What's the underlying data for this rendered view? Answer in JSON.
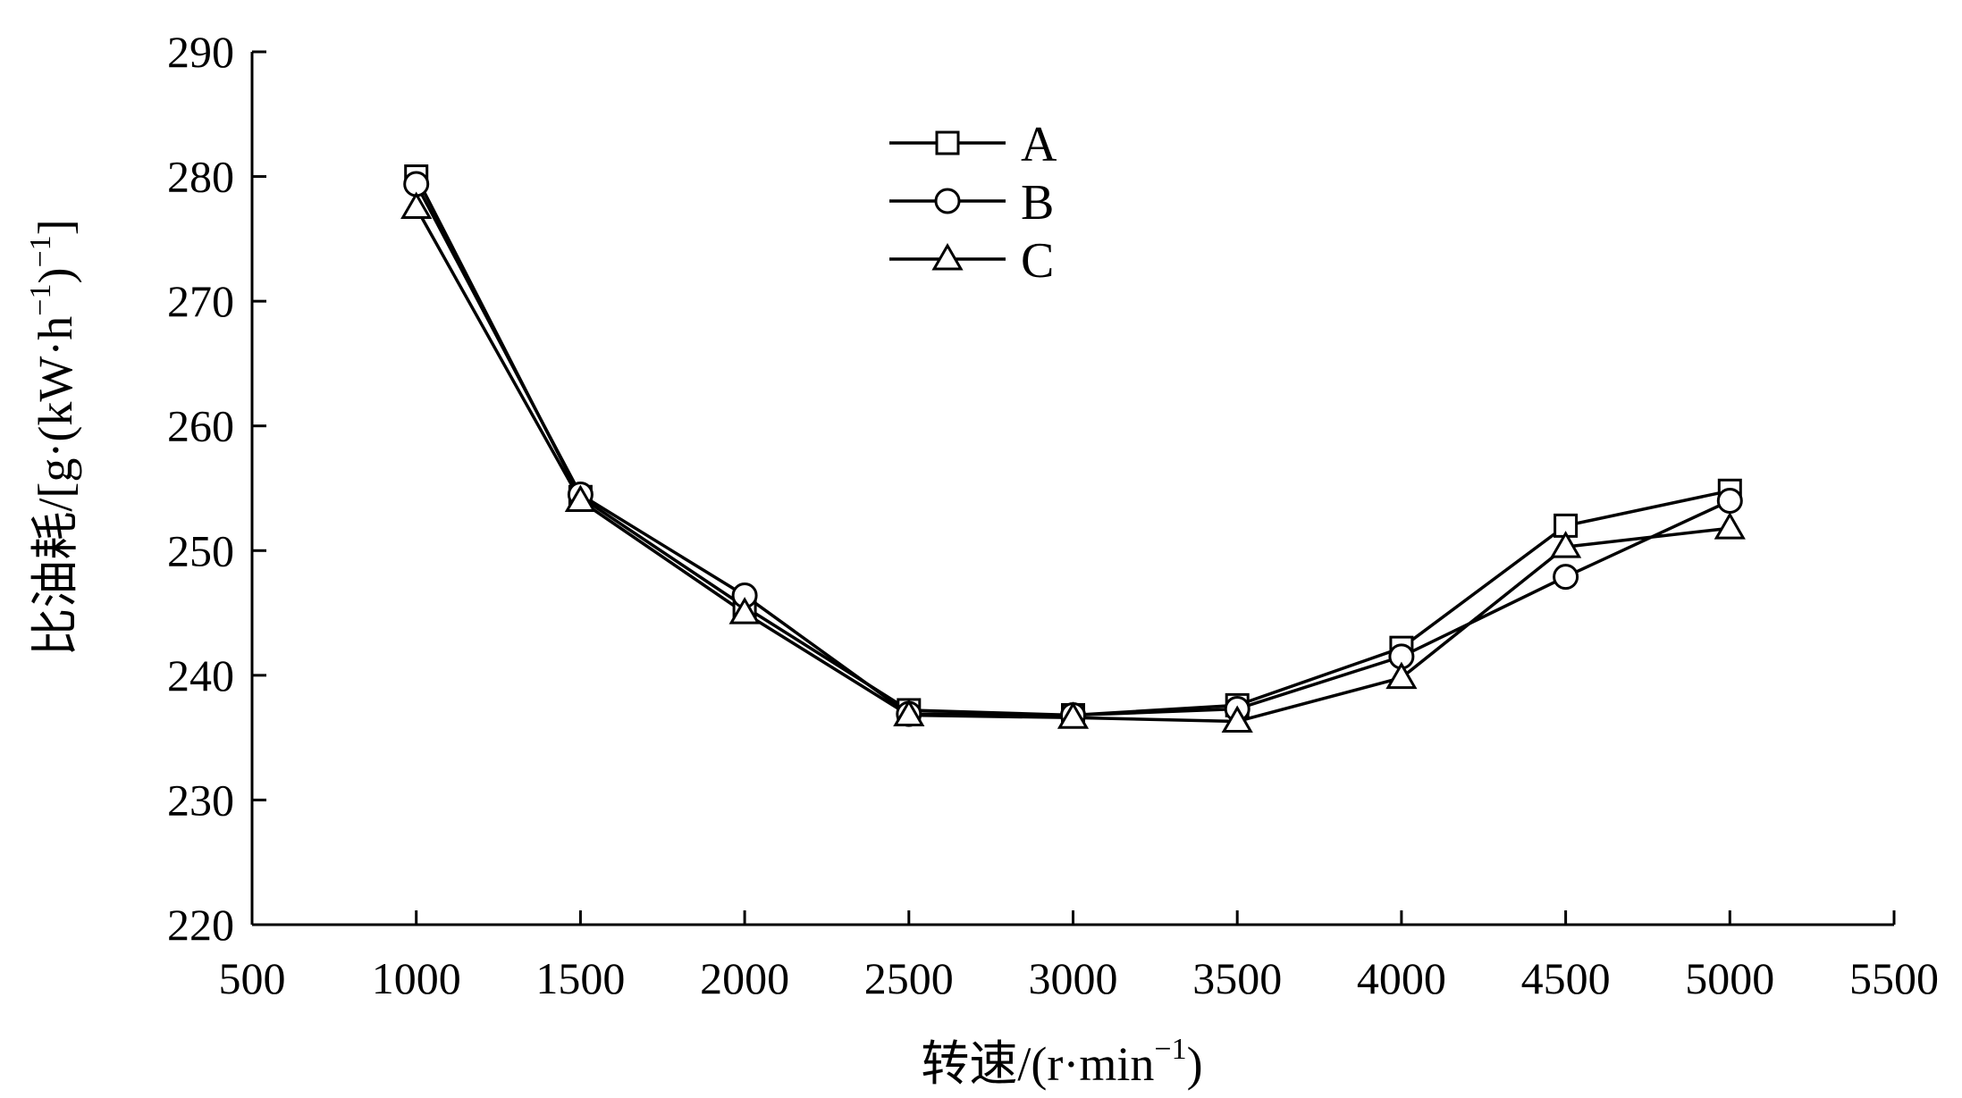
{
  "chart_data": {
    "type": "line",
    "xlabel": "转速/(r·min",
    "xlabel_sup": "−1",
    "xlabel_tail": ")",
    "ylabel_parts": [
      {
        "t": "比油耗/[g·(kW·h"
      },
      {
        "t": "−1",
        "sup": true
      },
      {
        "t": ")"
      },
      {
        "t": "−1",
        "sup": true
      },
      {
        "t": "]"
      }
    ],
    "xlim": [
      500,
      5500
    ],
    "ylim": [
      220,
      290
    ],
    "xticks": [
      500,
      1000,
      1500,
      2000,
      2500,
      3000,
      3500,
      4000,
      4500,
      5000,
      5500
    ],
    "yticks": [
      220,
      230,
      240,
      250,
      260,
      270,
      280,
      290
    ],
    "grid": false,
    "legend_position": "top-center",
    "x": [
      1000,
      1500,
      2000,
      2500,
      3000,
      3500,
      4000,
      4500,
      5000
    ],
    "series": [
      {
        "name": "A",
        "marker": "square",
        "values": [
          280.0,
          254.3,
          245.5,
          237.2,
          236.8,
          237.6,
          242.2,
          252.0,
          254.8
        ]
      },
      {
        "name": "B",
        "marker": "circle",
        "values": [
          279.4,
          254.5,
          246.4,
          236.9,
          236.8,
          237.3,
          241.5,
          247.9,
          254.0
        ]
      },
      {
        "name": "C",
        "marker": "triangle",
        "values": [
          277.5,
          254.0,
          245.0,
          236.8,
          236.6,
          236.3,
          239.8,
          250.3,
          251.8
        ]
      }
    ]
  }
}
